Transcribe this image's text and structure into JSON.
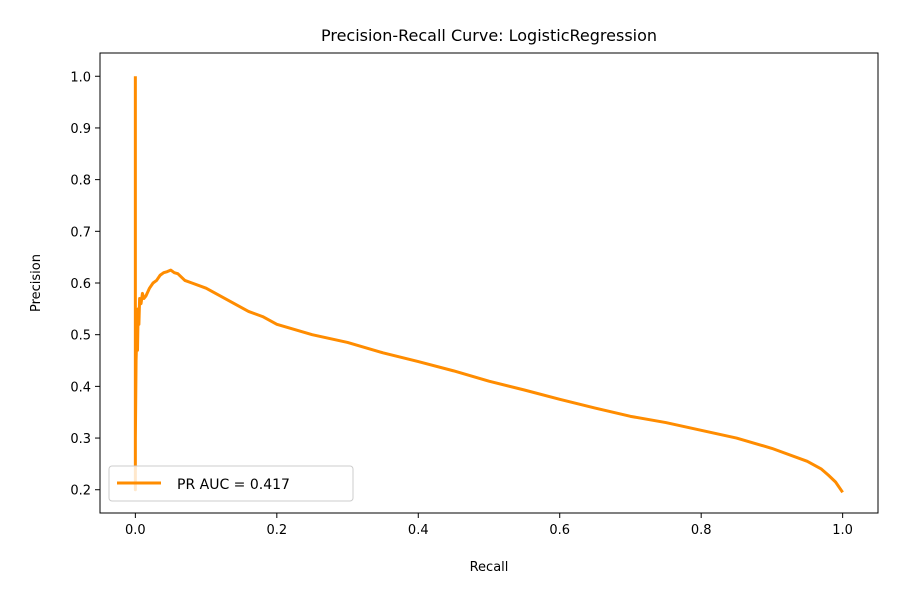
{
  "chart_data": {
    "type": "line",
    "title": "Precision-Recall Curve: LogisticRegression",
    "xlabel": "Recall",
    "ylabel": "Precision",
    "xlim": [
      -0.05,
      1.05
    ],
    "ylim": [
      0.155,
      1.045
    ],
    "xticks": [
      0.0,
      0.2,
      0.4,
      0.6,
      0.8,
      1.0
    ],
    "xtick_labels": [
      "0.0",
      "0.2",
      "0.4",
      "0.6",
      "0.8",
      "1.0"
    ],
    "yticks": [
      0.2,
      0.3,
      0.4,
      0.5,
      0.6,
      0.7,
      0.8,
      0.9,
      1.0
    ],
    "ytick_labels": [
      "0.2",
      "0.3",
      "0.4",
      "0.5",
      "0.6",
      "0.7",
      "0.8",
      "0.9",
      "1.0"
    ],
    "grid": false,
    "legend_position": "lower-left",
    "series": [
      {
        "name": "PR AUC = 0.417",
        "color": "#ff8c00",
        "x": [
          0.0,
          0.0,
          0.0,
          0.001,
          0.002,
          0.003,
          0.004,
          0.005,
          0.006,
          0.008,
          0.01,
          0.012,
          0.015,
          0.02,
          0.025,
          0.03,
          0.035,
          0.04,
          0.045,
          0.05,
          0.055,
          0.06,
          0.07,
          0.08,
          0.1,
          0.12,
          0.14,
          0.16,
          0.18,
          0.2,
          0.25,
          0.3,
          0.35,
          0.4,
          0.45,
          0.5,
          0.55,
          0.6,
          0.65,
          0.7,
          0.75,
          0.8,
          0.85,
          0.9,
          0.95,
          0.97,
          0.98,
          0.99,
          1.0
        ],
        "y": [
          1.0,
          0.2,
          0.3,
          0.45,
          0.5,
          0.47,
          0.55,
          0.52,
          0.57,
          0.56,
          0.58,
          0.57,
          0.575,
          0.59,
          0.6,
          0.605,
          0.615,
          0.62,
          0.622,
          0.625,
          0.62,
          0.618,
          0.605,
          0.6,
          0.59,
          0.575,
          0.56,
          0.545,
          0.535,
          0.52,
          0.5,
          0.485,
          0.465,
          0.448,
          0.43,
          0.41,
          0.393,
          0.375,
          0.358,
          0.342,
          0.33,
          0.315,
          0.3,
          0.28,
          0.255,
          0.24,
          0.228,
          0.215,
          0.195
        ]
      }
    ]
  }
}
